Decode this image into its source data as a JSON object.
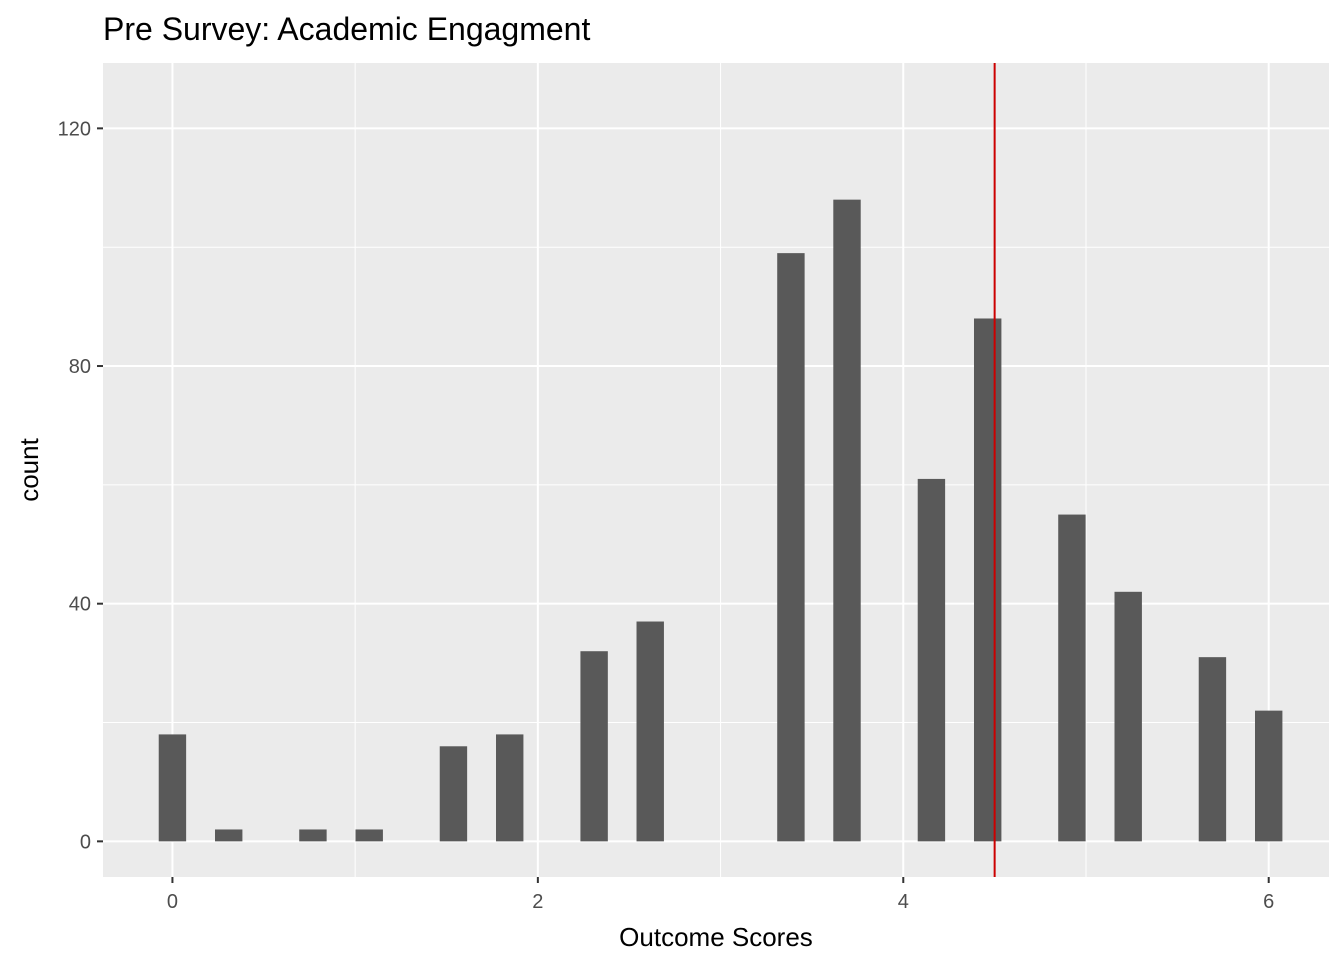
{
  "chart_data": {
    "type": "bar",
    "title": "Pre Survey: Academic Engagment",
    "xlabel": "Outcome Scores",
    "ylabel": "count",
    "xlim": [
      -0.38,
      6.33
    ],
    "ylim": [
      -6,
      131
    ],
    "x_ticks": [
      0,
      2,
      4,
      6
    ],
    "x_tick_labels": [
      "0",
      "2",
      "4",
      "6"
    ],
    "y_ticks": [
      0,
      40,
      80,
      120
    ],
    "y_tick_labels": [
      "0",
      "40",
      "80",
      "120"
    ],
    "bar_width": 0.15,
    "x": [
      0,
      0.308,
      0.769,
      1.077,
      1.538,
      1.846,
      2.308,
      2.615,
      3.385,
      3.692,
      4.154,
      4.462,
      4.923,
      5.231,
      5.692,
      6
    ],
    "values": [
      18,
      2,
      2,
      2,
      16,
      18,
      32,
      37,
      99,
      108,
      61,
      88,
      55,
      42,
      31,
      22
    ],
    "reference_line": {
      "x": 4.5,
      "color": "#cc0000"
    },
    "bar_color": "#595959",
    "panel_color": "#ebebeb",
    "grid": true,
    "legend": "none"
  }
}
